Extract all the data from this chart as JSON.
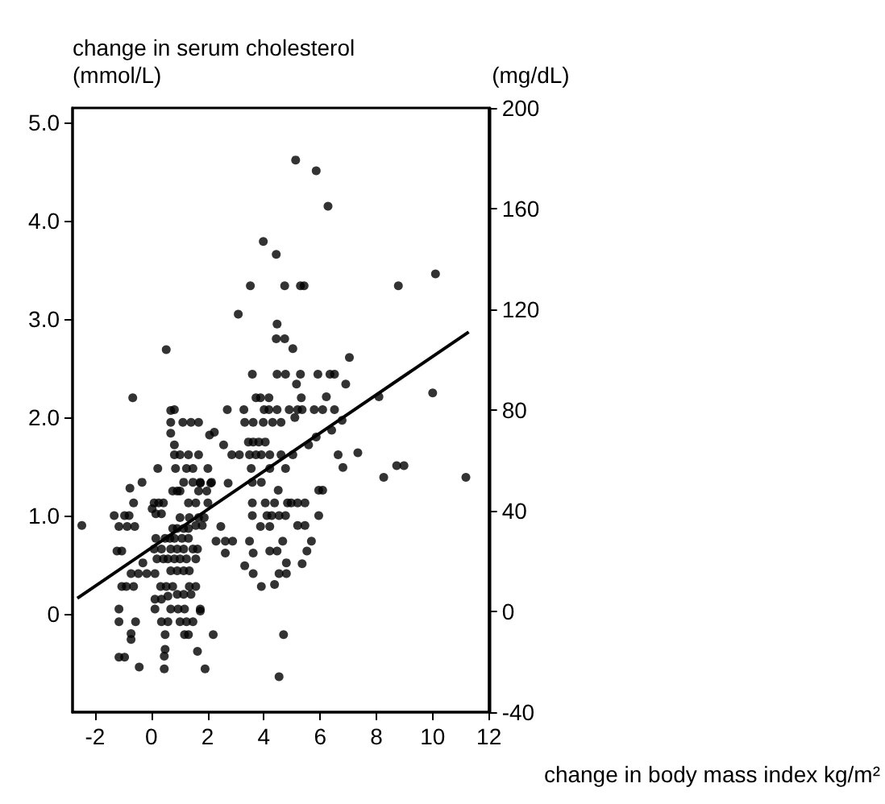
{
  "chart_data": {
    "type": "scatter",
    "xlabel": "change in body mass index kg/m²",
    "ylabel": "change in serum cholesterol\n(mmol/L)",
    "y2label": "(mg/dL)",
    "xlim": [
      -2.8,
      12
    ],
    "xticks": [
      -2,
      0,
      2,
      4,
      6,
      8,
      10,
      12
    ],
    "ylim": [
      -1,
      5.15
    ],
    "yticks": [
      0,
      {
        "value": 1,
        "label": "1.0"
      },
      {
        "value": 2,
        "label": "2.0"
      },
      {
        "value": 3,
        "label": "3.0"
      },
      {
        "value": 4,
        "label": "4.0"
      },
      {
        "value": 5,
        "label": "5.0"
      }
    ],
    "y2lim": [
      -40,
      200
    ],
    "y2ticks": [
      -40,
      0,
      40,
      80,
      120,
      160,
      200
    ],
    "marker": "circle",
    "grid": false,
    "series": [
      {
        "color": "#000000",
        "x": [
          5.13,
          5.86,
          6.28,
          3.98,
          4.44,
          3.52,
          4.74,
          5.3,
          5.43,
          3.09,
          4.47,
          4.44,
          4.74,
          5.03,
          7.04,
          3.59,
          4.47,
          4.77,
          5.3,
          5.92,
          6.35,
          6.51,
          5.16,
          6.91,
          3.72,
          3.88,
          4.18,
          5.33,
          6.22,
          2.7,
          3.29,
          4.01,
          4.18,
          4.47,
          4.9,
          5.2,
          5.36,
          5.79,
          6.09,
          6.51,
          0.53,
          -0.66,
          0.82,
          8.78,
          10.1,
          8.09,
          10.0,
          8.26,
          8.72,
          8.98,
          11.18,
          -2.47,
          -1.32,
          -1.15,
          -0.86,
          -0.59,
          -0.95,
          -0.79,
          -0.76,
          -0.63,
          -0.33,
          -1.22,
          -1.05,
          -1.05,
          -0.89,
          -0.63,
          -1.15,
          -1.15,
          -0.56,
          -0.72,
          -0.72,
          -1.15,
          -0.95,
          -0.43,
          -0.16,
          -0.46,
          -0.72,
          0.13,
          -0.3,
          0.23,
          0.1,
          0.26,
          0.43,
          0.03,
          0.16,
          0.36,
          0.69,
          1.12,
          1.41,
          1.68,
          2.07,
          0.69,
          0.69,
          0.82,
          0.82,
          1.02,
          1.32,
          1.68,
          0.86,
          1.25,
          1.48,
          2.01,
          1.15,
          1.48,
          1.74,
          2.14,
          0.76,
          0.92,
          1.02,
          1.68,
          1.97,
          1.32,
          1.58,
          2.01,
          1.02,
          1.35,
          1.68,
          1.88,
          1.58,
          1.81,
          0.76,
          0.92,
          1.15,
          1.32,
          0.16,
          0.49,
          0.66,
          0.82,
          1.09,
          1.32,
          0.1,
          0.36,
          0.69,
          0.92,
          1.15,
          1.48,
          1.64,
          0.2,
          0.43,
          0.59,
          0.82,
          1.02,
          1.25,
          1.58,
          0.69,
          0.92,
          1.15,
          1.35,
          0.33,
          0.53,
          0.76,
          1.35,
          1.58,
          0.59,
          0.92,
          1.15,
          1.41,
          0.13,
          0.36,
          0.13,
          0.69,
          0.95,
          1.18,
          1.74,
          0.36,
          0.59,
          1.02,
          1.25,
          1.48,
          0.49,
          1.18,
          1.32,
          0.49,
          1.64,
          0.46,
          0.46,
          1.91,
          2.2,
          2.24,
          3.32,
          3.62,
          3.98,
          4.31,
          4.61,
          5.1,
          2.57,
          3.45,
          3.62,
          3.82,
          4.05,
          2.86,
          3.13,
          3.49,
          3.72,
          3.91,
          4.21,
          4.61,
          5.03,
          5.59,
          5.86,
          6.41,
          6.78,
          6.64,
          7.34,
          6.81,
          4.21,
          4.77,
          3.55,
          2.73,
          2.11,
          1.74,
          3.59,
          3.91,
          4.51,
          4.84,
          4.97,
          5.2,
          5.46,
          5.95,
          6.09,
          5.95,
          3.59,
          4.05,
          4.38,
          3.59,
          4.11,
          4.28,
          4.54,
          4.77,
          5.2,
          5.46,
          3.88,
          4.21,
          2.47,
          2.3,
          2.63,
          2.89,
          3.49,
          4.67,
          5.69,
          5.53,
          2.63,
          4.21,
          4.47,
          3.62,
          3.32,
          4.8,
          5.36,
          3.62,
          4.54,
          4.8,
          3.91,
          4.38,
          1.74,
          4.7,
          4.54
        ],
        "values": [
          4.62,
          4.51,
          4.15,
          3.79,
          3.66,
          3.34,
          3.34,
          3.34,
          3.34,
          3.05,
          2.95,
          2.8,
          2.8,
          2.7,
          2.61,
          2.44,
          2.44,
          2.44,
          2.44,
          2.44,
          2.44,
          2.44,
          2.34,
          2.34,
          2.2,
          2.2,
          2.2,
          2.2,
          2.21,
          2.08,
          2.08,
          2.08,
          2.08,
          2.08,
          2.08,
          2.08,
          2.08,
          2.08,
          2.08,
          2.08,
          2.69,
          2.2,
          2.08,
          3.34,
          3.46,
          2.21,
          2.25,
          1.39,
          1.51,
          1.51,
          1.39,
          0.9,
          1.0,
          0.89,
          0.89,
          0.89,
          1.0,
          1.0,
          1.28,
          1.13,
          1.34,
          0.64,
          0.64,
          0.28,
          0.28,
          0.28,
          0.05,
          -0.08,
          -0.08,
          -0.2,
          -0.26,
          -0.44,
          -0.44,
          -0.54,
          0.41,
          0.41,
          0.41,
          0.41,
          0.52,
          1.48,
          1.13,
          1.13,
          1.13,
          1.07,
          1.02,
          1.02,
          2.07,
          1.95,
          1.95,
          1.95,
          1.82,
          1.95,
          1.84,
          1.72,
          1.62,
          1.62,
          1.62,
          1.62,
          1.48,
          1.48,
          1.48,
          1.48,
          1.34,
          1.34,
          1.34,
          1.34,
          1.25,
          1.25,
          1.25,
          1.25,
          1.25,
          1.13,
          1.13,
          1.13,
          0.98,
          0.98,
          0.98,
          0.98,
          0.9,
          0.9,
          0.87,
          0.87,
          0.87,
          0.87,
          0.77,
          0.77,
          0.77,
          0.77,
          0.77,
          0.77,
          0.66,
          0.66,
          0.66,
          0.66,
          0.66,
          0.66,
          0.66,
          0.56,
          0.56,
          0.56,
          0.56,
          0.56,
          0.56,
          0.56,
          0.44,
          0.44,
          0.44,
          0.44,
          0.28,
          0.28,
          0.28,
          0.28,
          0.28,
          0.18,
          0.2,
          0.2,
          0.2,
          0.15,
          0.15,
          0.05,
          0.05,
          0.05,
          0.05,
          0.05,
          -0.08,
          -0.08,
          -0.08,
          -0.08,
          -0.08,
          -0.21,
          -0.21,
          -0.21,
          -0.36,
          -0.38,
          -0.43,
          -0.56,
          -0.56,
          -0.21,
          1.85,
          1.95,
          1.95,
          1.95,
          1.95,
          1.95,
          2.0,
          1.72,
          1.75,
          1.75,
          1.75,
          1.75,
          1.62,
          1.62,
          1.62,
          1.62,
          1.62,
          1.62,
          1.62,
          1.62,
          1.72,
          1.8,
          1.87,
          1.97,
          1.62,
          1.64,
          1.49,
          1.48,
          1.48,
          1.48,
          1.33,
          1.33,
          1.33,
          1.34,
          1.34,
          1.26,
          1.13,
          1.13,
          1.13,
          1.13,
          1.26,
          1.26,
          1.0,
          1.13,
          1.13,
          1.13,
          1.0,
          1.0,
          1.0,
          1.0,
          1.0,
          0.9,
          0.9,
          0.89,
          0.89,
          0.89,
          0.74,
          0.74,
          0.74,
          0.74,
          0.74,
          0.74,
          0.64,
          0.62,
          0.64,
          0.64,
          0.62,
          0.49,
          0.52,
          0.51,
          0.41,
          0.41,
          0.41,
          0.28,
          0.3,
          0.03,
          -0.21,
          -0.64
        ]
      },
      {
        "type": "line",
        "marker": "none",
        "color": "#000000",
        "x": [
          -2.63,
          11.28
        ],
        "values": [
          0.16,
          2.87
        ]
      }
    ]
  }
}
